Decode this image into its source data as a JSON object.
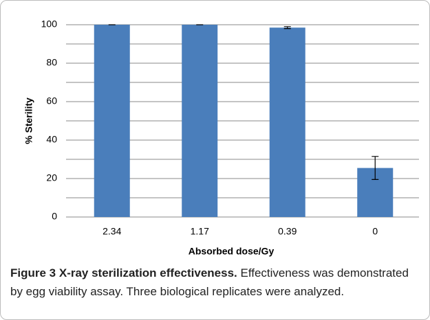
{
  "chart_data": {
    "type": "bar",
    "categories": [
      "2.34",
      "1.17",
      "0.39",
      "0"
    ],
    "values": [
      100,
      100,
      98.5,
      25.5
    ],
    "errors": [
      0,
      0,
      0.5,
      6
    ],
    "color": "#4a7ebb",
    "ylim": [
      0,
      100
    ],
    "yticks": [
      0,
      20,
      40,
      60,
      80,
      100
    ],
    "minor_gridlines": [
      10,
      30,
      50,
      70,
      90
    ],
    "grid": true,
    "ylabel": "% Sterility",
    "xlabel": "Absorbed dose/Gy"
  },
  "caption": {
    "label": "Figure 3",
    "title": "X-ray sterilization effectiveness.",
    "text": "Effectiveness was demonstrated by egg viability assay. Three biological replicates were analyzed."
  }
}
